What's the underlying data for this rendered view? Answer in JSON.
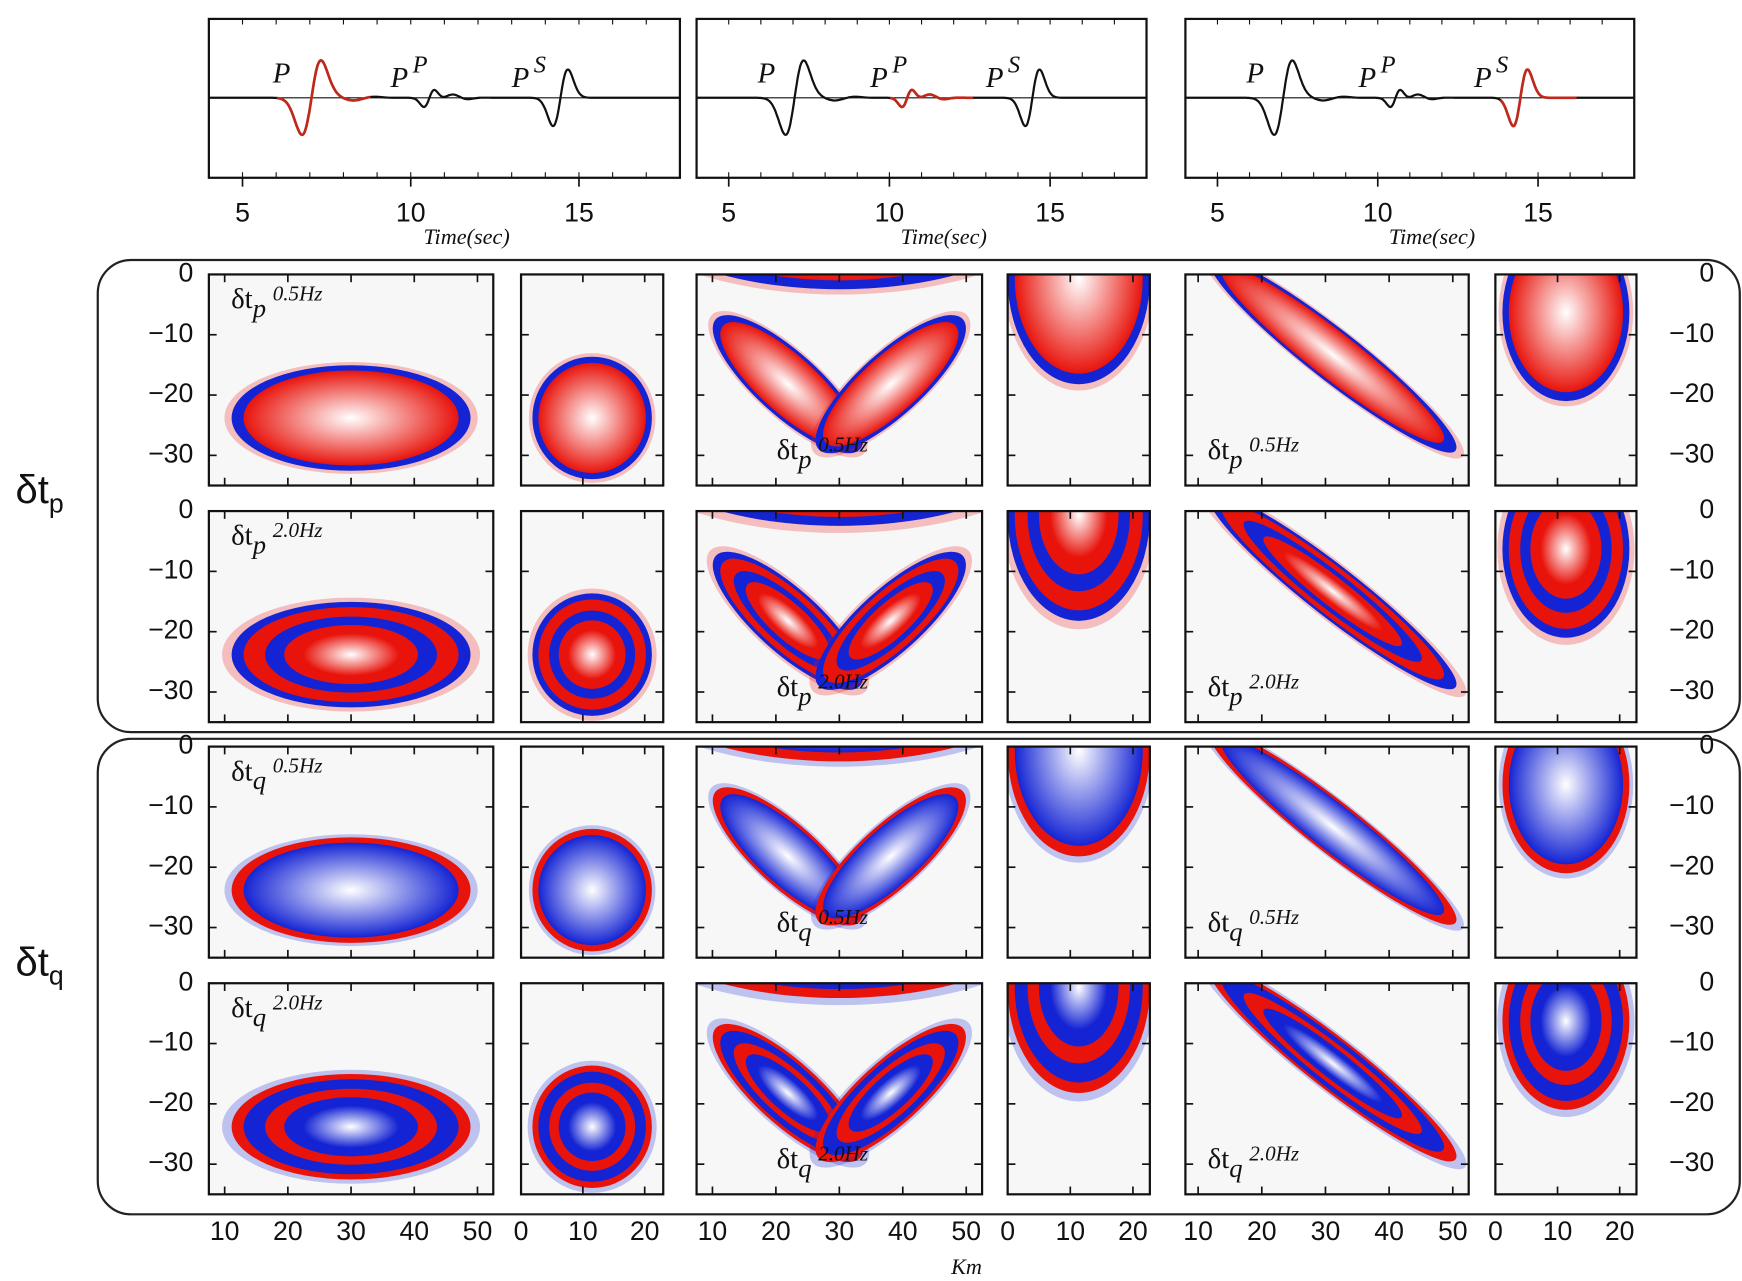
{
  "seismograms": {
    "xlabel": "Time(sec)",
    "xlim": [
      4,
      18
    ],
    "xticks": [
      5,
      10,
      15
    ],
    "phases": [
      {
        "label": "P"
      },
      {
        "label": "P",
        "sup": "P"
      },
      {
        "label": "P",
        "sup": "S"
      }
    ]
  },
  "kernels": {
    "ylim": [
      -35,
      0
    ],
    "yticks": [
      0,
      {
        "value": -10,
        "label": "−10"
      },
      {
        "value": -20,
        "label": "−20"
      },
      {
        "value": -30,
        "label": "−30"
      }
    ],
    "xlabel": "Km",
    "columns": [
      {
        "xlim": [
          7.5,
          52.5
        ],
        "xticks": [
          10,
          20,
          30,
          40,
          50
        ]
      },
      {
        "xlim": [
          0,
          23
        ],
        "xticks": [
          0,
          10,
          20
        ]
      },
      {
        "xlim": [
          7.5,
          52.5
        ],
        "xticks": [
          10,
          20,
          30,
          40,
          50
        ]
      },
      {
        "xlim": [
          0,
          22.7
        ],
        "xticks": [
          0,
          10,
          20
        ]
      },
      {
        "xlim": [
          8,
          52.5
        ],
        "xticks": [
          10,
          20,
          30,
          40,
          50
        ]
      },
      {
        "xlim": [
          0,
          22.7
        ],
        "xticks": [
          0,
          10,
          20
        ]
      }
    ],
    "rows": [
      {
        "base": "δt",
        "sub": "p",
        "freq": "0.5Hz"
      },
      {
        "base": "δt",
        "sub": "p",
        "freq": "2.0Hz"
      },
      {
        "base": "δt",
        "sub": "q",
        "freq": "0.5Hz"
      },
      {
        "base": "δt",
        "sub": "q",
        "freq": "2.0Hz"
      }
    ],
    "group_labels": [
      {
        "base": "δt",
        "sub": "p"
      },
      {
        "base": "δt",
        "sub": "q"
      }
    ]
  }
}
